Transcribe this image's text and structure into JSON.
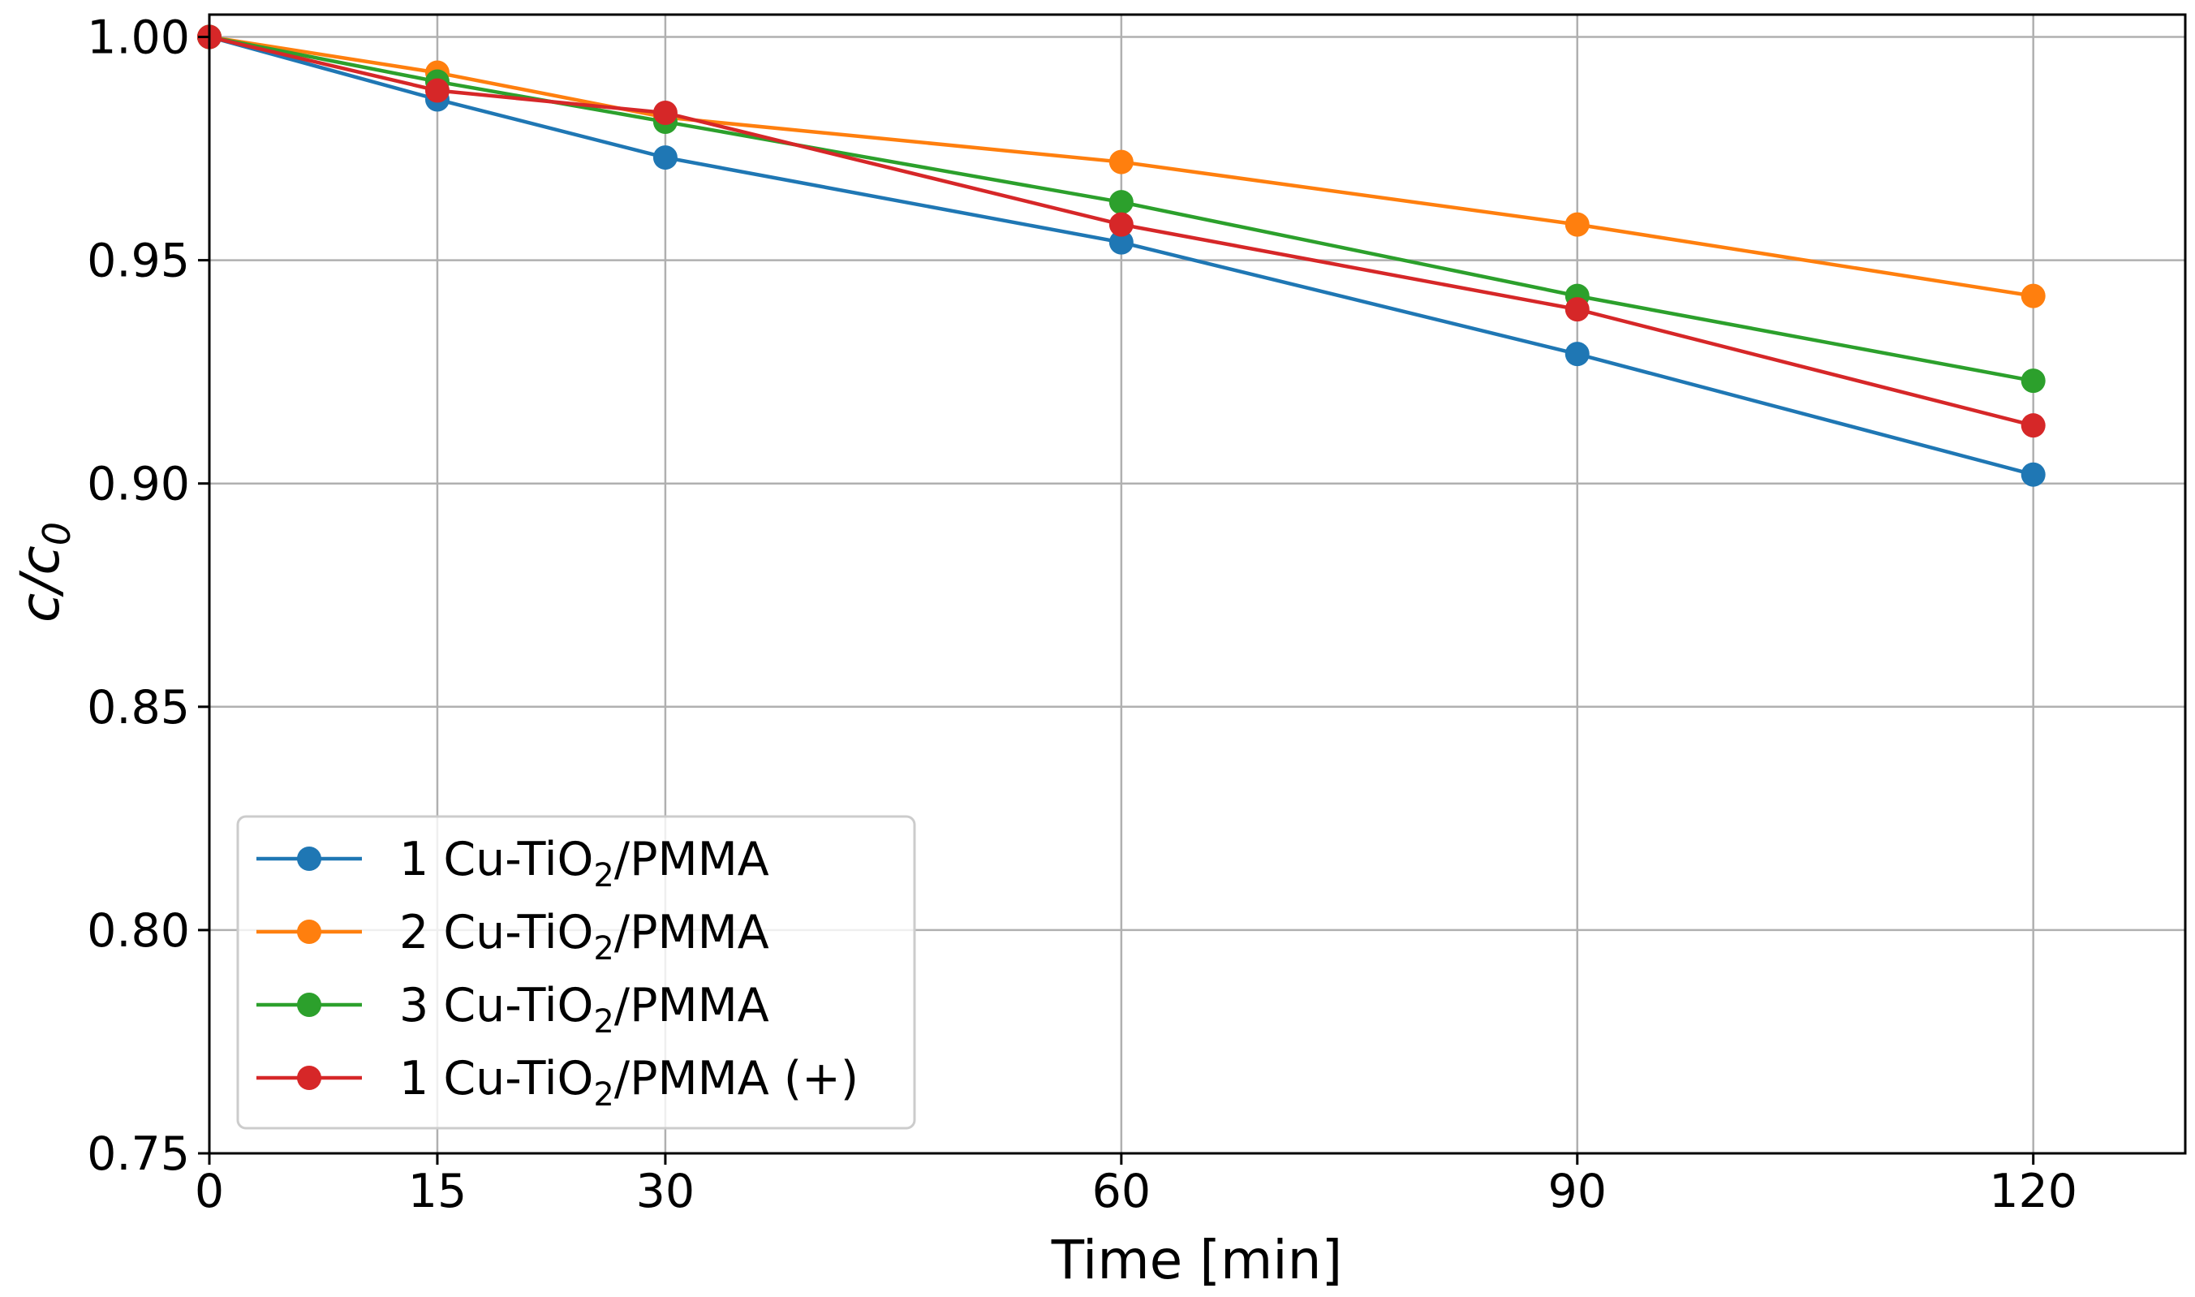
{
  "chart_data": {
    "type": "line",
    "title": "",
    "xlabel": "Time [min]",
    "ylabel_main": "c/c",
    "ylabel_sub": "0",
    "x": [
      0,
      15,
      30,
      60,
      90,
      120
    ],
    "xlim": [
      0,
      130
    ],
    "ylim": [
      0.75,
      1.005
    ],
    "xticks": [
      0,
      15,
      30,
      60,
      90,
      120
    ],
    "xtick_labels": [
      "0",
      "15",
      "30",
      "60",
      "90",
      "120"
    ],
    "yticks": [
      0.75,
      0.8,
      0.85,
      0.9,
      0.95,
      1.0
    ],
    "ytick_labels": [
      "0.75",
      "0.80",
      "0.85",
      "0.90",
      "0.95",
      "1.00"
    ],
    "grid": true,
    "legend_position": "lower-left",
    "series": [
      {
        "name": "1 Cu-TiO2/PMMA",
        "label_pre": "1 Cu-TiO",
        "label_sub": "2",
        "label_post": "/PMMA",
        "color": "#1f77b4",
        "values": [
          1.0,
          0.986,
          0.973,
          0.954,
          0.929,
          0.902
        ]
      },
      {
        "name": "2 Cu-TiO2/PMMA",
        "label_pre": "2 Cu-TiO",
        "label_sub": "2",
        "label_post": "/PMMA",
        "color": "#ff7f0e",
        "values": [
          1.0,
          0.992,
          0.982,
          0.972,
          0.958,
          0.942
        ]
      },
      {
        "name": "3 Cu-TiO2/PMMA",
        "label_pre": "3 Cu-TiO",
        "label_sub": "2",
        "label_post": "/PMMA",
        "color": "#2ca02c",
        "values": [
          1.0,
          0.99,
          0.981,
          0.963,
          0.942,
          0.923
        ]
      },
      {
        "name": "1 Cu-TiO2/PMMA (+)",
        "label_pre": "1 Cu-TiO",
        "label_sub": "2",
        "label_post": "/PMMA (+)",
        "color": "#d62728",
        "values": [
          1.0,
          0.988,
          0.983,
          0.958,
          0.939,
          0.913
        ]
      }
    ]
  }
}
